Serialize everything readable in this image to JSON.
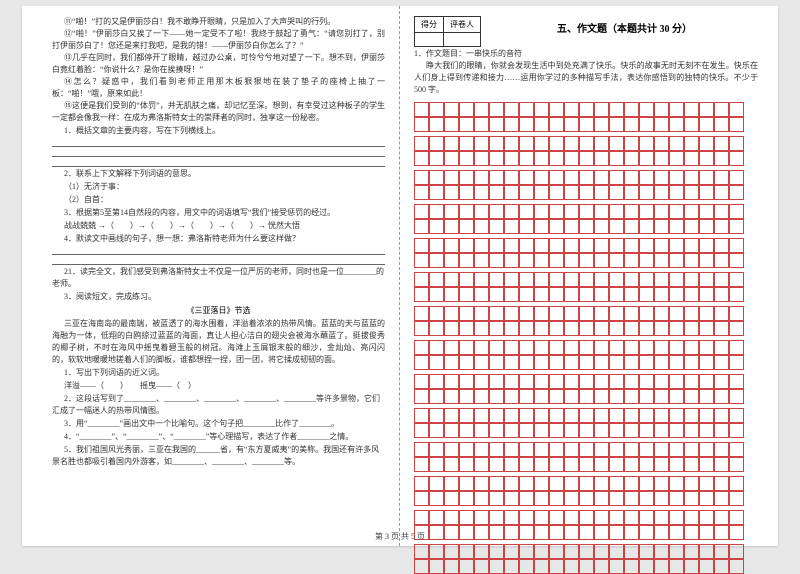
{
  "left": {
    "p11": "⑪“啪！”打的又是伊丽莎白！我不敢睁开眼睛，只是加入了大声哭叫的行列。",
    "p12": "⑫“啪！”伊丽莎白又挨了一下——她一定受不了啦！我终于鼓起了勇气：“请您别打了，别打伊丽莎白了！您还是来打我吧，是我的错！——伊丽莎白你怎么了？”",
    "p13": "⑬几乎在同时，我们都停开了眼睛，越过办公桌，可怜兮兮地对望了一下。想不到，伊丽莎白竟红着脸：“你说什么？是你在挨揍呀！”",
    "p14": "⑭怎么？疑惑中，我们看到老师正用那木板狠狠地在装了垫子的座椅上抽了一板：“啪！”哦，原来如此！",
    "p15": "⑮这便是我们受到的“体罚”，并无肌肤之痛，却记忆至深。想到，有幸受过这种板子的学生一定都会像我一样：在成为弗洛斯特女士的崇拜者的同时，独享这一份秘密。",
    "q1": "1．概括文章的主要内容，写在下列横线上。",
    "q2": "2．联系上下文解释下列词语的意思。",
    "q2a": "（1）无济于事：",
    "q2b": "（2）自首：",
    "q3": "3．根据第5至第14自然段的内容，用文中的词语填写“我们”接受惩罚的经过。",
    "q3flow": "战战兢兢  →（　　）→（　　）→（　　）→（　　）→  恍然大悟",
    "q4": "4．默读文中画线的句子，想一想：弗洛斯特老师为什么要这样做？",
    "q21": "21．读完全文，我们感受到弗洛斯特女士不仅是一位严厉的老师，同时也是一位________的老师。",
    "q31": "3．阅读短文，完成练习。",
    "passage_title": "《三亚落日》节选",
    "pp1": "三亚在海南岛的最南端，被蓝透了的海水围着，洋溢着浓浓的热带风情。蓝蓝的天与蓝蓝的海融为一体，低翔的白鸥掠过蓝蓝的海面，真让人担心洁白的翅尖会被海水蘸蓝了。挺拔俊秀的椰子树，不时在海风中摇曳着碧玉般的树冠。海滩上玉屑银末般的细沙，金灿灿、亮闪闪的，软软地暖暖地搓着人们的脚板，谁都想捏一捏，团一团，将它揉成韧韧的面。",
    "s1": "1．写出下列词语的近义词。",
    "s1a": "洋溢——（　　）　　摇曳——（　）",
    "s2": "2．这段话写到了________、________、________、________、________等许多景物，它们汇成了一幅迷人的热带风情图。",
    "s3": "3．用“________”画出文中一个比喻句。这个句子把________比作了________。",
    "s4": "4．“________”、“________”、“________”等心理描写，表达了作者________之情。",
    "s5": "5．我们祖国风光秀丽，三亚在我国的______省，有“东方夏威夷”的美称。我国还有许多风景名胜也都吸引着国内外游客，如________、________、________等。"
  },
  "right": {
    "score_label": "得分",
    "grader_label": "评卷人",
    "section_title": "五、作文题（本题共计 30 分）",
    "q1": "1．作文题目：一串快乐的音符",
    "prompt": "睁大我们的眼睛，你就会发现生活中到处充满了快乐。快乐的故事无时无刻不在发生。快乐在人们身上得到传递和接力……运用你学过的多种描写手法，表达你感悟到的独特的快乐。不少于 500 字。",
    "grid": {
      "rows_per_block": 2,
      "blocks": 14,
      "cols": 22,
      "cell_border_color": "#c44"
    }
  },
  "footer": "第 3 页  共 5 页"
}
